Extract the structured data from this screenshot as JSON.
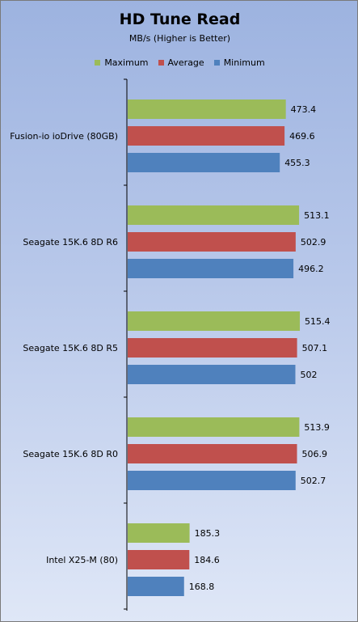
{
  "chart_data": {
    "type": "bar",
    "orientation": "horizontal",
    "title": "HD Tune Read",
    "subtitle": "MB/s (Higher is Better)",
    "legend_position": "top",
    "grid": false,
    "categories": [
      "Fusion-io ioDrive (80GB)",
      "Seagate 15K.6 8D R6",
      "Seagate 15K.6 8D R5",
      "Seagate 15K.6 8D R0",
      "Intel X25-M (80)"
    ],
    "series": [
      {
        "name": "Maximum",
        "color": "#9bbb59",
        "values": [
          473.4,
          513.1,
          515.4,
          513.9,
          185.3
        ],
        "labels": [
          "473.4",
          "513.1",
          "515.4",
          "513.9",
          "185.3"
        ]
      },
      {
        "name": "Average",
        "color": "#c0504d",
        "values": [
          469.6,
          502.9,
          507.1,
          506.9,
          184.6
        ],
        "labels": [
          "469.6",
          "502.9",
          "507.1",
          "506.9",
          "184.6"
        ]
      },
      {
        "name": "Minimum",
        "color": "#4f81bd",
        "values": [
          455.3,
          496.2,
          502,
          502.7,
          168.8
        ],
        "labels": [
          "455.3",
          "496.2",
          "502",
          "502.7",
          "168.8"
        ]
      }
    ],
    "xlim": [
      0,
      600
    ]
  }
}
